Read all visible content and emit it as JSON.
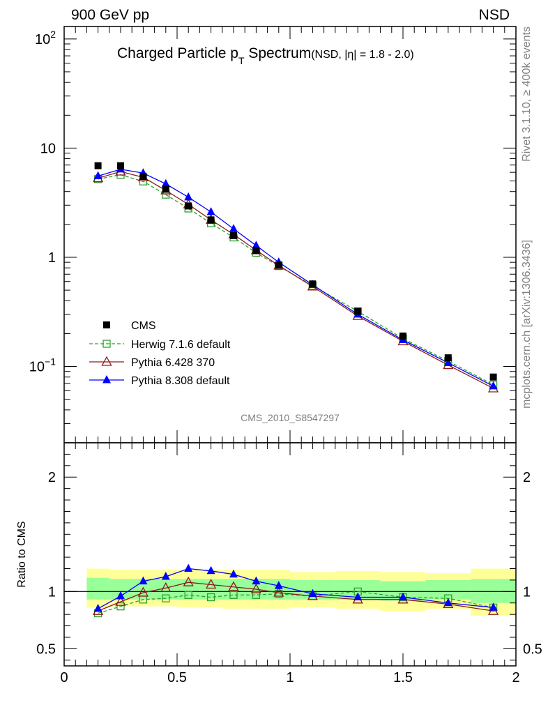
{
  "header": {
    "left": "900 GeV pp",
    "right": "NSD"
  },
  "side_labels": {
    "rivet": "Rivet 3.1.10, ≥ 400k events",
    "mcplots": "mcplots.cern.ch [arXiv:1306.3436]"
  },
  "colors": {
    "cms": "#000000",
    "herwig": "#2ca02c",
    "pythia6": "#8b1a1a",
    "pythia8": "#0000ff",
    "band_outer": "#ffff99",
    "band_inner": "#99ff99"
  },
  "chart_data": [
    {
      "type": "line",
      "title": "Charged Particle p_T Spectrum",
      "title_main": "Charged Particle p",
      "title_sub": "T",
      "title_tail": "Spectrum",
      "title_extra": "(NSD, |η| = 1.8 - 2.0)",
      "analysis_id": "CMS_2010_S8547297",
      "y_scale": "log",
      "xlim": [
        0,
        2
      ],
      "ylim": [
        0.02,
        130
      ],
      "yticks": [
        {
          "value": 100,
          "base": "10",
          "exp": "2"
        },
        {
          "value": 10,
          "base": "10",
          "exp": ""
        },
        {
          "value": 1,
          "base": "1",
          "exp": ""
        },
        {
          "value": 0.1,
          "base": "10",
          "exp": "−1"
        }
      ],
      "legend_position": "lower-left",
      "x": [
        0.15,
        0.25,
        0.35,
        0.45,
        0.55,
        0.65,
        0.75,
        0.85,
        0.95,
        1.1,
        1.3,
        1.5,
        1.7,
        1.9
      ],
      "series": [
        {
          "name": "CMS",
          "style": "square-filled",
          "values": [
            6.9,
            6.9,
            5.5,
            4.2,
            2.95,
            2.2,
            1.58,
            1.15,
            0.85,
            0.57,
            0.32,
            0.19,
            0.12,
            0.08
          ]
        },
        {
          "name": "Herwig 7.1.6 default",
          "style": "square-open-dashed",
          "values": [
            5.2,
            5.7,
            4.95,
            3.75,
            2.8,
            2.05,
            1.52,
            1.1,
            0.83,
            0.55,
            0.32,
            0.18,
            0.112,
            0.068
          ]
        },
        {
          "name": "Pythia 6.428 370",
          "style": "triangle-open",
          "values": [
            5.3,
            6.1,
            5.4,
            4.1,
            3.05,
            2.2,
            1.62,
            1.16,
            0.84,
            0.54,
            0.29,
            0.17,
            0.103,
            0.063
          ]
        },
        {
          "name": "Pythia 8.308 default",
          "style": "triangle-filled",
          "values": [
            5.55,
            6.4,
            5.9,
            4.7,
            3.55,
            2.6,
            1.82,
            1.28,
            0.9,
            0.56,
            0.3,
            0.175,
            0.108,
            0.066
          ]
        }
      ]
    },
    {
      "type": "line",
      "ylabel": "Ratio to CMS",
      "xlim": [
        0,
        2
      ],
      "ylim": [
        0.35,
        2.3
      ],
      "yticks": [
        0.5,
        1,
        2
      ],
      "xticks": [
        0,
        0.5,
        1,
        1.5,
        2
      ],
      "xtick_labels": [
        "0",
        "0.5",
        "1",
        "1.5",
        "2"
      ],
      "ytick_labels": [
        "0.5",
        "1",
        "2"
      ],
      "reference_line": 1,
      "bands": [
        {
          "x0": 0.1,
          "x1": 0.2,
          "outer": [
            0.86,
            1.2
          ],
          "inner": [
            0.93,
            1.12
          ]
        },
        {
          "x0": 0.2,
          "x1": 0.3,
          "outer": [
            0.87,
            1.19
          ],
          "inner": [
            0.93,
            1.11
          ]
        },
        {
          "x0": 0.3,
          "x1": 0.4,
          "outer": [
            0.87,
            1.19
          ],
          "inner": [
            0.93,
            1.11
          ]
        },
        {
          "x0": 0.4,
          "x1": 0.5,
          "outer": [
            0.87,
            1.19
          ],
          "inner": [
            0.93,
            1.11
          ]
        },
        {
          "x0": 0.5,
          "x1": 0.6,
          "outer": [
            0.86,
            1.19
          ],
          "inner": [
            0.93,
            1.11
          ]
        },
        {
          "x0": 0.6,
          "x1": 0.7,
          "outer": [
            0.86,
            1.19
          ],
          "inner": [
            0.93,
            1.11
          ]
        },
        {
          "x0": 0.7,
          "x1": 0.8,
          "outer": [
            0.85,
            1.19
          ],
          "inner": [
            0.93,
            1.11
          ]
        },
        {
          "x0": 0.8,
          "x1": 0.9,
          "outer": [
            0.85,
            1.19
          ],
          "inner": [
            0.93,
            1.11
          ]
        },
        {
          "x0": 0.9,
          "x1": 1.0,
          "outer": [
            0.85,
            1.19
          ],
          "inner": [
            0.93,
            1.11
          ]
        },
        {
          "x0": 1.0,
          "x1": 1.2,
          "outer": [
            0.86,
            1.17
          ],
          "inner": [
            0.93,
            1.1
          ]
        },
        {
          "x0": 1.2,
          "x1": 1.4,
          "outer": [
            0.85,
            1.18
          ],
          "inner": [
            0.93,
            1.1
          ]
        },
        {
          "x0": 1.4,
          "x1": 1.6,
          "outer": [
            0.83,
            1.17
          ],
          "inner": [
            0.92,
            1.09
          ]
        },
        {
          "x0": 1.6,
          "x1": 1.8,
          "outer": [
            0.85,
            1.16
          ],
          "inner": [
            0.93,
            1.1
          ]
        },
        {
          "x0": 1.8,
          "x1": 2.0,
          "outer": [
            0.79,
            1.2
          ],
          "inner": [
            0.9,
            1.11
          ]
        }
      ],
      "x": [
        0.15,
        0.25,
        0.35,
        0.45,
        0.55,
        0.65,
        0.75,
        0.85,
        0.95,
        1.1,
        1.3,
        1.5,
        1.7,
        1.9
      ],
      "series": [
        {
          "name": "Herwig 7.1.6 default",
          "style": "square-open-dashed",
          "values": [
            0.81,
            0.87,
            0.93,
            0.94,
            0.97,
            0.95,
            0.97,
            0.97,
            0.98,
            0.96,
            1.0,
            0.95,
            0.94,
            0.86
          ]
        },
        {
          "name": "Pythia 6.428 370",
          "style": "triangle-open",
          "values": [
            0.83,
            0.91,
            0.99,
            1.03,
            1.08,
            1.06,
            1.04,
            1.02,
            0.99,
            0.96,
            0.93,
            0.93,
            0.89,
            0.83
          ]
        },
        {
          "name": "Pythia 8.308 default",
          "style": "triangle-filled",
          "values": [
            0.85,
            0.96,
            1.09,
            1.13,
            1.2,
            1.18,
            1.15,
            1.09,
            1.05,
            0.98,
            0.95,
            0.95,
            0.9,
            0.86
          ]
        }
      ]
    }
  ]
}
